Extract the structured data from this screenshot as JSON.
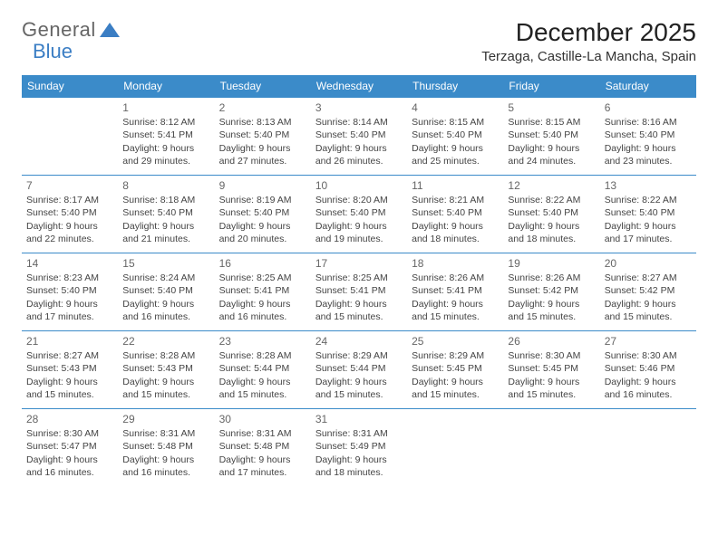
{
  "logo": {
    "part1": "General",
    "part2": "Blue"
  },
  "title": "December 2025",
  "location": "Terzaga, Castille-La Mancha, Spain",
  "colors": {
    "header_bg": "#3b8bc9",
    "header_text": "#ffffff",
    "border": "#3b8bc9",
    "logo_blue": "#3b7ec4",
    "text": "#444444"
  },
  "weekdays": [
    "Sunday",
    "Monday",
    "Tuesday",
    "Wednesday",
    "Thursday",
    "Friday",
    "Saturday"
  ],
  "weeks": [
    [
      null,
      {
        "n": "1",
        "sr": "8:12 AM",
        "ss": "5:41 PM",
        "dl": "9 hours and 29 minutes."
      },
      {
        "n": "2",
        "sr": "8:13 AM",
        "ss": "5:40 PM",
        "dl": "9 hours and 27 minutes."
      },
      {
        "n": "3",
        "sr": "8:14 AM",
        "ss": "5:40 PM",
        "dl": "9 hours and 26 minutes."
      },
      {
        "n": "4",
        "sr": "8:15 AM",
        "ss": "5:40 PM",
        "dl": "9 hours and 25 minutes."
      },
      {
        "n": "5",
        "sr": "8:15 AM",
        "ss": "5:40 PM",
        "dl": "9 hours and 24 minutes."
      },
      {
        "n": "6",
        "sr": "8:16 AM",
        "ss": "5:40 PM",
        "dl": "9 hours and 23 minutes."
      }
    ],
    [
      {
        "n": "7",
        "sr": "8:17 AM",
        "ss": "5:40 PM",
        "dl": "9 hours and 22 minutes."
      },
      {
        "n": "8",
        "sr": "8:18 AM",
        "ss": "5:40 PM",
        "dl": "9 hours and 21 minutes."
      },
      {
        "n": "9",
        "sr": "8:19 AM",
        "ss": "5:40 PM",
        "dl": "9 hours and 20 minutes."
      },
      {
        "n": "10",
        "sr": "8:20 AM",
        "ss": "5:40 PM",
        "dl": "9 hours and 19 minutes."
      },
      {
        "n": "11",
        "sr": "8:21 AM",
        "ss": "5:40 PM",
        "dl": "9 hours and 18 minutes."
      },
      {
        "n": "12",
        "sr": "8:22 AM",
        "ss": "5:40 PM",
        "dl": "9 hours and 18 minutes."
      },
      {
        "n": "13",
        "sr": "8:22 AM",
        "ss": "5:40 PM",
        "dl": "9 hours and 17 minutes."
      }
    ],
    [
      {
        "n": "14",
        "sr": "8:23 AM",
        "ss": "5:40 PM",
        "dl": "9 hours and 17 minutes."
      },
      {
        "n": "15",
        "sr": "8:24 AM",
        "ss": "5:40 PM",
        "dl": "9 hours and 16 minutes."
      },
      {
        "n": "16",
        "sr": "8:25 AM",
        "ss": "5:41 PM",
        "dl": "9 hours and 16 minutes."
      },
      {
        "n": "17",
        "sr": "8:25 AM",
        "ss": "5:41 PM",
        "dl": "9 hours and 15 minutes."
      },
      {
        "n": "18",
        "sr": "8:26 AM",
        "ss": "5:41 PM",
        "dl": "9 hours and 15 minutes."
      },
      {
        "n": "19",
        "sr": "8:26 AM",
        "ss": "5:42 PM",
        "dl": "9 hours and 15 minutes."
      },
      {
        "n": "20",
        "sr": "8:27 AM",
        "ss": "5:42 PM",
        "dl": "9 hours and 15 minutes."
      }
    ],
    [
      {
        "n": "21",
        "sr": "8:27 AM",
        "ss": "5:43 PM",
        "dl": "9 hours and 15 minutes."
      },
      {
        "n": "22",
        "sr": "8:28 AM",
        "ss": "5:43 PM",
        "dl": "9 hours and 15 minutes."
      },
      {
        "n": "23",
        "sr": "8:28 AM",
        "ss": "5:44 PM",
        "dl": "9 hours and 15 minutes."
      },
      {
        "n": "24",
        "sr": "8:29 AM",
        "ss": "5:44 PM",
        "dl": "9 hours and 15 minutes."
      },
      {
        "n": "25",
        "sr": "8:29 AM",
        "ss": "5:45 PM",
        "dl": "9 hours and 15 minutes."
      },
      {
        "n": "26",
        "sr": "8:30 AM",
        "ss": "5:45 PM",
        "dl": "9 hours and 15 minutes."
      },
      {
        "n": "27",
        "sr": "8:30 AM",
        "ss": "5:46 PM",
        "dl": "9 hours and 16 minutes."
      }
    ],
    [
      {
        "n": "28",
        "sr": "8:30 AM",
        "ss": "5:47 PM",
        "dl": "9 hours and 16 minutes."
      },
      {
        "n": "29",
        "sr": "8:31 AM",
        "ss": "5:48 PM",
        "dl": "9 hours and 16 minutes."
      },
      {
        "n": "30",
        "sr": "8:31 AM",
        "ss": "5:48 PM",
        "dl": "9 hours and 17 minutes."
      },
      {
        "n": "31",
        "sr": "8:31 AM",
        "ss": "5:49 PM",
        "dl": "9 hours and 18 minutes."
      },
      null,
      null,
      null
    ]
  ],
  "labels": {
    "sunrise": "Sunrise:",
    "sunset": "Sunset:",
    "daylight": "Daylight:"
  }
}
